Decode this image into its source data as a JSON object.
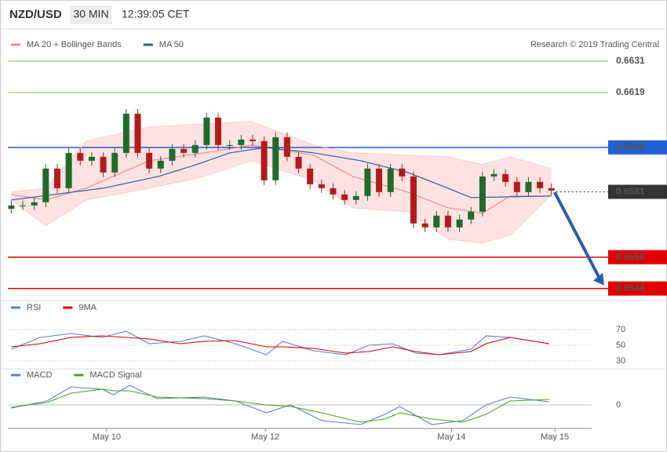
{
  "chart_data": [
    {
      "type": "candlestick",
      "title": "NZD/USD",
      "interval": "30 MIN",
      "time": "12:39:05 CET",
      "credit": "Research © 2019 Trading Central",
      "xlim": [
        -0.3,
        50.5
      ],
      "ylim": [
        0.654,
        0.6643
      ],
      "up_color": "#1e6b2c",
      "down_color": "#b31b1b",
      "open": [
        0.65745,
        0.65758,
        0.65758,
        0.6577,
        0.65899,
        0.65824,
        0.65959,
        0.65929,
        0.65944,
        0.65884,
        0.65959,
        0.66109,
        0.65959,
        0.65899,
        0.65929,
        0.65974,
        0.65959,
        0.65989,
        0.66094,
        0.65989,
        0.65989,
        0.6601,
        0.66004,
        0.65854,
        0.66019,
        0.65944,
        0.65899,
        0.65839,
        0.65824,
        0.658,
        0.65779,
        0.65794,
        0.65899,
        0.65809,
        0.65899,
        0.65869,
        0.65689,
        0.65674,
        0.65719,
        0.65674,
        0.65704,
        0.65734,
        0.65869,
        0.65878,
        0.65848,
        0.65809,
        0.65848,
        0.65824
      ],
      "high": [
        0.65776,
        0.65776,
        0.65788,
        0.65917,
        0.65917,
        0.65977,
        0.65977,
        0.65962,
        0.65962,
        0.65977,
        0.66127,
        0.66127,
        0.65977,
        0.65947,
        0.65992,
        0.65992,
        0.66007,
        0.66112,
        0.66112,
        0.66007,
        0.66028,
        0.66028,
        0.66022,
        0.66037,
        0.66037,
        0.65962,
        0.65917,
        0.65857,
        0.65842,
        0.65818,
        0.65812,
        0.65917,
        0.65917,
        0.65917,
        0.65917,
        0.65887,
        0.65707,
        0.65737,
        0.65737,
        0.65722,
        0.65752,
        0.65887,
        0.65896,
        0.65896,
        0.65866,
        0.65866,
        0.65866,
        0.65842
      ],
      "low": [
        0.65727,
        0.6574,
        0.6574,
        0.65752,
        0.65806,
        0.65806,
        0.65911,
        0.65911,
        0.65866,
        0.65866,
        0.65941,
        0.65941,
        0.65881,
        0.65881,
        0.65911,
        0.65941,
        0.65941,
        0.65971,
        0.65971,
        0.65971,
        0.65971,
        0.65986,
        0.65836,
        0.65836,
        0.65926,
        0.65881,
        0.65821,
        0.65806,
        0.65782,
        0.65761,
        0.65761,
        0.65776,
        0.65791,
        0.65791,
        0.65851,
        0.65671,
        0.65656,
        0.65656,
        0.65656,
        0.65656,
        0.65686,
        0.65716,
        0.65851,
        0.6583,
        0.65791,
        0.65791,
        0.65806,
        0.65797
      ],
      "close": [
        0.65758,
        0.65758,
        0.6577,
        0.65899,
        0.65824,
        0.65959,
        0.65929,
        0.65944,
        0.65884,
        0.65959,
        0.66109,
        0.65959,
        0.65899,
        0.65929,
        0.65974,
        0.65959,
        0.65989,
        0.66094,
        0.65989,
        0.65989,
        0.6601,
        0.66004,
        0.65854,
        0.66019,
        0.65944,
        0.65899,
        0.65839,
        0.65824,
        0.658,
        0.65779,
        0.65794,
        0.65899,
        0.65809,
        0.65899,
        0.65869,
        0.65689,
        0.65674,
        0.65719,
        0.65674,
        0.65704,
        0.65734,
        0.65869,
        0.65878,
        0.65848,
        0.65809,
        0.65848,
        0.65824,
        0.65815
      ],
      "band_color": "#fde2e2",
      "series": [
        {
          "name": "MA 20 + Bollinger Bands",
          "color": "#f08a8a",
          "x": [
            0,
            3,
            6.5,
            12,
            16.8,
            20.9,
            26.3,
            29.7,
            34.5,
            38,
            41,
            43.4,
            47
          ],
          "values": [
            0.658,
            0.65779,
            0.65824,
            0.65929,
            0.65959,
            0.65989,
            0.6595,
            0.65869,
            0.65809,
            0.65749,
            0.65728,
            0.65794,
            0.65794
          ],
          "upper": [
            0.65809,
            0.65824,
            0.66004,
            0.66058,
            0.6607,
            0.66079,
            0.65989,
            0.65959,
            0.6595,
            0.65944,
            0.65914,
            0.65944,
            0.65899
          ],
          "lower": [
            0.65779,
            0.6568,
            0.65779,
            0.65824,
            0.65869,
            0.65929,
            0.65854,
            0.65749,
            0.65734,
            0.65629,
            0.65614,
            0.65644,
            0.658
          ]
        },
        {
          "name": "MA 50",
          "color": "#2a5ea8",
          "x": [
            0,
            8,
            12.8,
            16.1,
            19,
            22.2,
            26.3,
            30.4,
            34.5,
            38,
            40,
            47
          ],
          "values": [
            0.65779,
            0.65824,
            0.65869,
            0.65914,
            0.65959,
            0.6598,
            0.65959,
            0.65929,
            0.65884,
            0.65824,
            0.65788,
            0.65794
          ]
        }
      ],
      "levels": [
        {
          "value": 0.6631,
          "color": "#7cbc4e",
          "style": "plain"
        },
        {
          "value": 0.6619,
          "color": "#7cbc4e",
          "style": "plain"
        },
        {
          "value": 0.6598,
          "color": "#2060d0",
          "style": "box"
        },
        {
          "value": 0.6581,
          "color": "#333333",
          "style": "current"
        },
        {
          "value": 0.6556,
          "color": "#e00000",
          "style": "box"
        },
        {
          "value": 0.6544,
          "color": "#e00000",
          "style": "box"
        }
      ]
    },
    {
      "type": "line",
      "xlim": [
        -0.3,
        50.5
      ],
      "ylim": [
        20,
        90
      ],
      "yticks": [
        30,
        50,
        70
      ],
      "grid": true,
      "series": [
        {
          "name": "RSI",
          "color": "#5b7fd6",
          "x": [
            0,
            2.5,
            5.2,
            7.9,
            10,
            12,
            14.7,
            16.8,
            19.5,
            22.2,
            23.6,
            26.3,
            29.1,
            31.1,
            33.2,
            35.2,
            37.2,
            40,
            41.3,
            43.4,
            46.8
          ],
          "values": [
            45,
            60,
            65,
            60,
            68,
            52,
            55,
            62,
            52,
            38,
            55,
            43,
            38,
            50,
            52,
            40,
            38,
            45,
            62,
            60,
            52
          ]
        },
        {
          "name": "9MA",
          "color": "#e00000",
          "x": [
            0,
            2.5,
            5.2,
            7.9,
            10,
            12,
            14.7,
            16.8,
            19.5,
            22.2,
            23.6,
            26.3,
            29.1,
            31.1,
            33.2,
            35.2,
            37.2,
            40,
            41.3,
            43.4,
            46.8
          ],
          "values": [
            48,
            52,
            60,
            62,
            60,
            58,
            52,
            55,
            56,
            48,
            48,
            46,
            40,
            42,
            48,
            42,
            38,
            42,
            52,
            60,
            52
          ]
        }
      ]
    },
    {
      "type": "line",
      "xlim": [
        -0.3,
        50.5
      ],
      "ylim": [
        -29,
        31
      ],
      "yticks": [
        0
      ],
      "xticks": [
        {
          "value": 8.3,
          "label": "May 10"
        },
        {
          "value": 22.1,
          "label": "May 12"
        },
        {
          "value": 38.3,
          "label": "May 14"
        },
        {
          "value": 47.3,
          "label": "May 15"
        }
      ],
      "series": [
        {
          "name": "MACD",
          "color": "#5b7fd6",
          "x": [
            0,
            3.1,
            5.2,
            7.9,
            8.9,
            10.3,
            12.7,
            16.8,
            19.5,
            22.2,
            24.3,
            27,
            30.4,
            32.5,
            33.8,
            36.6,
            39.3,
            41.3,
            43.4,
            46.8
          ],
          "values": [
            -4,
            5,
            23,
            20,
            13,
            25,
            8,
            10,
            5,
            -10,
            0,
            -20,
            -25,
            -12,
            -2,
            -25,
            -20,
            0,
            10,
            4
          ]
        },
        {
          "name": "MACD Signal",
          "color": "#4ea21a",
          "x": [
            0,
            3.1,
            5.2,
            7.9,
            8.9,
            10.3,
            12.7,
            16.8,
            19.5,
            22.2,
            24.3,
            27,
            30.4,
            32.5,
            33.8,
            36.6,
            39.3,
            41.3,
            43.4,
            46.8
          ],
          "values": [
            -3,
            3,
            15,
            20,
            18,
            18,
            10,
            8,
            5,
            0,
            -2,
            -10,
            -22,
            -18,
            -10,
            -18,
            -22,
            -12,
            5,
            7
          ]
        }
      ]
    }
  ]
}
